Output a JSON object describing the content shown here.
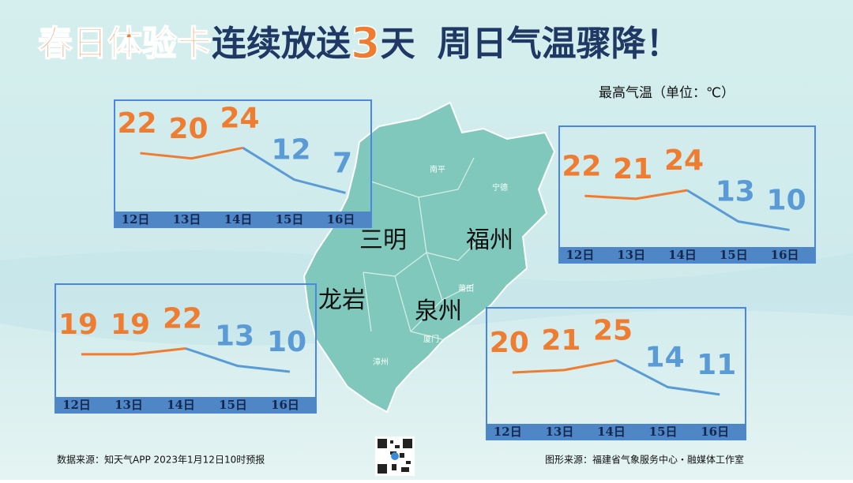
{
  "header": {
    "title_parts": [
      "春日体验卡",
      "连续放送",
      "3",
      "天",
      "周日气温骤降！"
    ],
    "subtitle": "最高气温（单位：℃）"
  },
  "map": {
    "labels": [
      "南平",
      "宁德",
      "三明",
      "福州",
      "莆田",
      "龙岩",
      "泉州",
      "厦门",
      "漳州"
    ]
  },
  "footer": {
    "data_source": "数据来源：知天气APP 2023年1月12日10时预报",
    "graphic_source": "图形来源：福建省气象服务中心・融媒体工作室"
  },
  "chart_data": [
    {
      "type": "line",
      "categories": [
        "12日",
        "13日",
        "14日",
        "15日",
        "16日"
      ],
      "ylim": [
        0,
        36
      ],
      "series": [
        {
          "values": [
            22,
            20,
            24,
            12,
            7
          ],
          "colors": [
            "#ef7d31",
            "#ef7d31",
            "#ef7d31",
            "#5b9bd5",
            "#5b9bd5"
          ]
        }
      ]
    },
    {
      "type": "line",
      "categories": [
        "12日",
        "13日",
        "14日",
        "15日",
        "16日"
      ],
      "ylim": [
        4,
        41
      ],
      "series": [
        {
          "values": [
            22,
            21,
            24,
            13,
            10
          ],
          "colors": [
            "#ef7d31",
            "#ef7d31",
            "#ef7d31",
            "#5b9bd5",
            "#5b9bd5"
          ]
        }
      ]
    },
    {
      "type": "line",
      "categories": [
        "12日",
        "13日",
        "14日",
        "15日",
        "16日"
      ],
      "ylim": [
        -3,
        47
      ],
      "series": [
        {
          "values": [
            19,
            19,
            22,
            13,
            10
          ],
          "colors": [
            "#ef7d31",
            "#ef7d31",
            "#ef7d31",
            "#5b9bd5",
            "#5b9bd5"
          ]
        }
      ]
    },
    {
      "type": "line",
      "categories": [
        "12日",
        "13日",
        "14日",
        "15日",
        "16日"
      ],
      "ylim": [
        -1,
        40
      ],
      "series": [
        {
          "values": [
            20,
            21,
            25,
            14,
            11
          ],
          "colors": [
            "#ef7d31",
            "#ef7d31",
            "#ef7d31",
            "#5b9bd5",
            "#5b9bd5"
          ]
        }
      ]
    }
  ]
}
